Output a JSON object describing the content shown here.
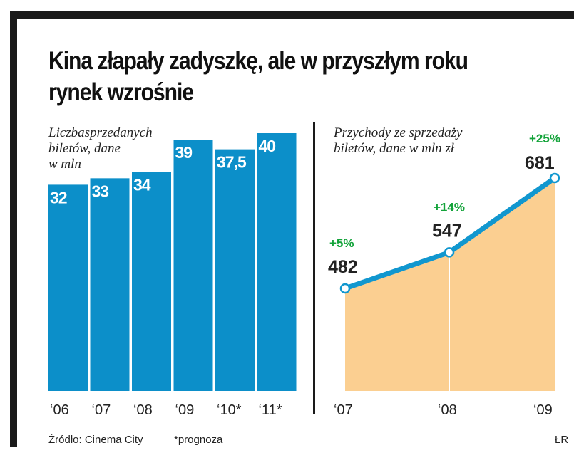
{
  "title_lines": [
    "Kina złapały zadyszkę, ale w przyszłym roku",
    "rynek wzrośnie"
  ],
  "colors": {
    "bar": "#0c8fc9",
    "line": "#1197cf",
    "area": "#fbcf91",
    "growth": "#13a33a",
    "text": "#222222",
    "frame": "#1a1a1a"
  },
  "chart_data": [
    {
      "type": "bar",
      "title_lines": [
        "Liczbasprzedanych",
        "biletów, dane",
        "w mln"
      ],
      "categories": [
        "‘06",
        "‘07",
        "‘08",
        "‘09",
        "‘10*",
        "‘11*"
      ],
      "values": [
        32,
        33,
        34,
        39,
        37.5,
        40
      ],
      "value_labels": [
        "32",
        "33",
        "34",
        "39",
        "37,5",
        "40"
      ],
      "ylim": [
        0,
        40
      ]
    },
    {
      "type": "area",
      "title_lines": [
        "Przychody ze sprzedaży",
        "biletów, dane w mln zł"
      ],
      "categories": [
        "‘07",
        "‘08",
        "‘09"
      ],
      "values": [
        482,
        547,
        681
      ],
      "value_labels": [
        "482",
        "547",
        "681"
      ],
      "growth_labels": [
        "+5%",
        "+14%",
        "+25%"
      ],
      "ylim": [
        0,
        681
      ]
    }
  ],
  "footer": {
    "source": "Źródło: Cinema City",
    "note": "*prognoza",
    "credit": "ŁR"
  }
}
